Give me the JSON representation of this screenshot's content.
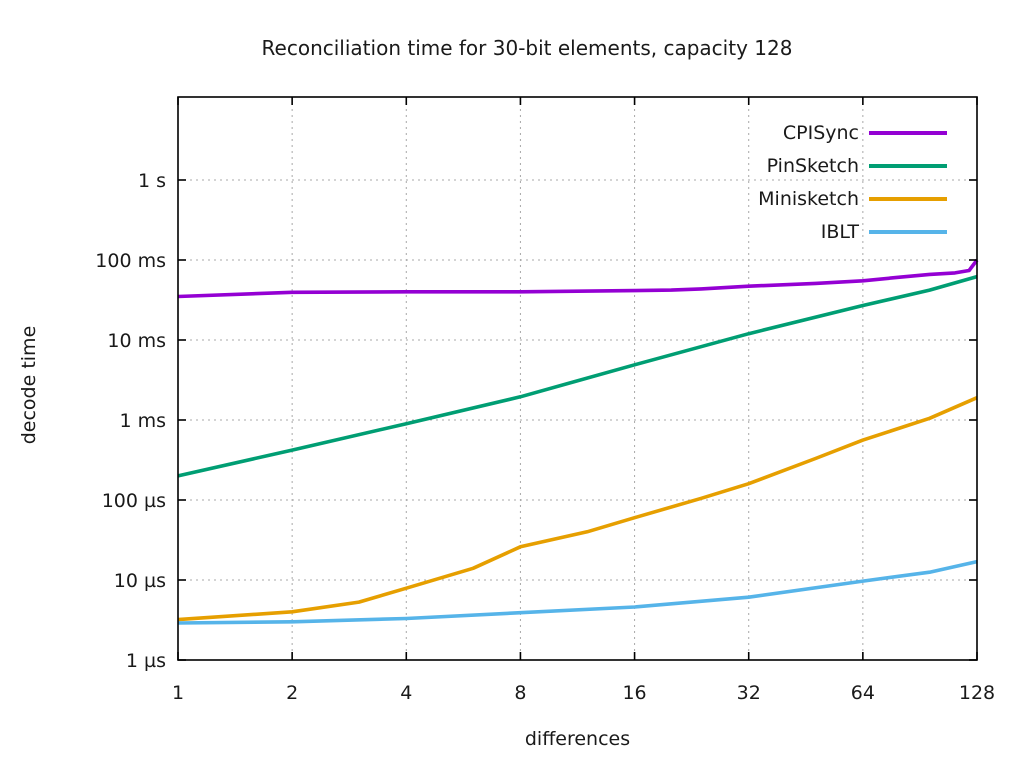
{
  "chart_data": {
    "type": "line",
    "title": "Reconciliation time for 30-bit elements, capacity 128",
    "xlabel": "differences",
    "ylabel": "decode time",
    "x_scale": "log2",
    "y_scale": "log10",
    "grid": true,
    "legend_position": "top-right-inside",
    "x_ticks": [
      1,
      2,
      4,
      8,
      16,
      32,
      64,
      128
    ],
    "x_tick_labels": [
      "1",
      "2",
      "4",
      "8",
      "16",
      "32",
      "64",
      "128"
    ],
    "y_tick_labels": [
      "1 µs",
      "10 µs",
      "100 µs",
      "1 ms",
      "10 ms",
      "100 ms",
      "1 s"
    ],
    "y_tick_values_us": [
      1,
      10,
      100,
      1000,
      10000,
      100000,
      1000000
    ],
    "x_range": [
      1,
      128
    ],
    "y_range_us": [
      1,
      10900000
    ],
    "axis_color": "#000000",
    "grid_color": "#a8a8a8",
    "series": [
      {
        "name": "CPISync",
        "color": "#9400d3",
        "x": [
          1,
          2,
          4,
          8,
          16,
          20,
          24,
          32,
          48,
          64,
          80,
          96,
          112,
          122,
          128
        ],
        "values_us": [
          35000,
          39500,
          40000,
          40000,
          41500,
          42000,
          43500,
          47000,
          51000,
          55000,
          61000,
          66000,
          69000,
          74000,
          100000
        ]
      },
      {
        "name": "PinSketch",
        "color": "#009e73",
        "x": [
          1,
          2,
          4,
          8,
          16,
          32,
          64,
          96,
          128
        ],
        "values_us": [
          200,
          420,
          900,
          1950,
          4900,
          12000,
          27000,
          42000,
          62000
        ]
      },
      {
        "name": "Minisketch",
        "color": "#e69f00",
        "x": [
          1,
          2,
          3,
          4,
          6,
          8,
          12,
          16,
          24,
          32,
          48,
          64,
          96,
          128
        ],
        "values_us": [
          3.2,
          4.0,
          5.3,
          7.9,
          14,
          26,
          40,
          60,
          105,
          160,
          330,
          560,
          1050,
          1900
        ]
      },
      {
        "name": "IBLT",
        "color": "#56b4e9",
        "x": [
          1,
          2,
          4,
          8,
          16,
          32,
          64,
          96,
          128
        ],
        "values_us": [
          2.9,
          3.0,
          3.3,
          3.9,
          4.6,
          6.1,
          9.7,
          12.5,
          17
        ]
      }
    ]
  }
}
